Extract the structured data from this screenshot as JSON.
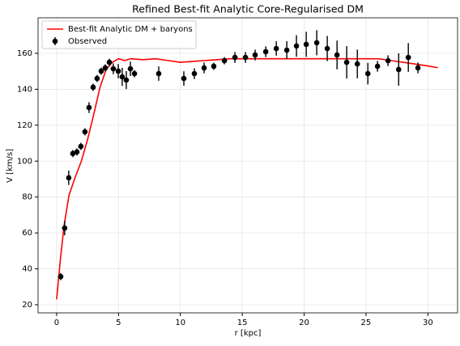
{
  "chart_data": {
    "type": "line",
    "title": "Refined Best-fit Analytic Core-Regularised DM",
    "xlabel": "r [kpc]",
    "ylabel": "V [km/s]",
    "xlim": [
      -1.5,
      32.4
    ],
    "ylim": [
      15.5,
      179.8
    ],
    "xticks": [
      0,
      5,
      10,
      15,
      20,
      25,
      30
    ],
    "yticks": [
      20,
      40,
      60,
      80,
      100,
      120,
      140,
      160
    ],
    "grid": true,
    "legend": "upper left",
    "series": [
      {
        "name": "Best-fit Analytic DM + baryons",
        "color": "#ff0000",
        "style": "line",
        "x": [
          0,
          0.3,
          0.6,
          1.0,
          1.5,
          2,
          2.5,
          3,
          3.5,
          4,
          4.5,
          5,
          5.5,
          6,
          7,
          8,
          9,
          10,
          11,
          12,
          14,
          16,
          20,
          24,
          26,
          27,
          28,
          29,
          30,
          30.8
        ],
        "values": [
          23,
          45,
          64,
          81,
          91,
          100,
          112,
          126,
          141,
          151,
          155,
          157,
          156,
          157,
          156.5,
          157,
          156,
          155,
          155.5,
          156,
          157,
          157,
          157,
          157,
          157,
          156,
          155,
          154,
          153,
          152
        ]
      },
      {
        "name": "Observed",
        "color": "#000000",
        "style": "errorbar",
        "x": [
          0.33,
          0.65,
          0.98,
          1.31,
          1.64,
          1.96,
          2.29,
          2.62,
          2.95,
          3.27,
          3.6,
          3.93,
          4.26,
          4.58,
          4.98,
          5.3,
          5.63,
          5.96,
          6.29,
          8.25,
          10.28,
          11.13,
          11.92,
          12.7,
          13.56,
          14.41,
          15.26,
          16.04,
          16.9,
          17.75,
          18.6,
          19.38,
          20.17,
          21.02,
          21.87,
          22.66,
          23.44,
          24.3,
          25.15,
          25.93,
          26.78,
          27.64,
          28.42,
          29.2
        ],
        "values": [
          35.7,
          62.7,
          90.7,
          104.2,
          105.1,
          108.2,
          116.3,
          129.8,
          141.1,
          146.0,
          150.1,
          151.9,
          155.0,
          151.4,
          150.1,
          146.9,
          145.1,
          151.4,
          148.7,
          148.7,
          146.0,
          148.7,
          151.9,
          152.8,
          155.9,
          157.7,
          157.7,
          159.1,
          160.9,
          162.7,
          161.8,
          164.1,
          165.0,
          165.9,
          162.7,
          159.1,
          155.0,
          154.1,
          148.7,
          152.8,
          155.9,
          151.0,
          157.7,
          151.9
        ],
        "errors": [
          2,
          4,
          4,
          2,
          2,
          2,
          2,
          3,
          2,
          2,
          2,
          2,
          2,
          3,
          4,
          5,
          5,
          4,
          2,
          4,
          4,
          3,
          3,
          2,
          2,
          3,
          3,
          3,
          3,
          4,
          5,
          6,
          7,
          7,
          7,
          8,
          9,
          8,
          6,
          3,
          3,
          9,
          8,
          3
        ]
      }
    ]
  }
}
